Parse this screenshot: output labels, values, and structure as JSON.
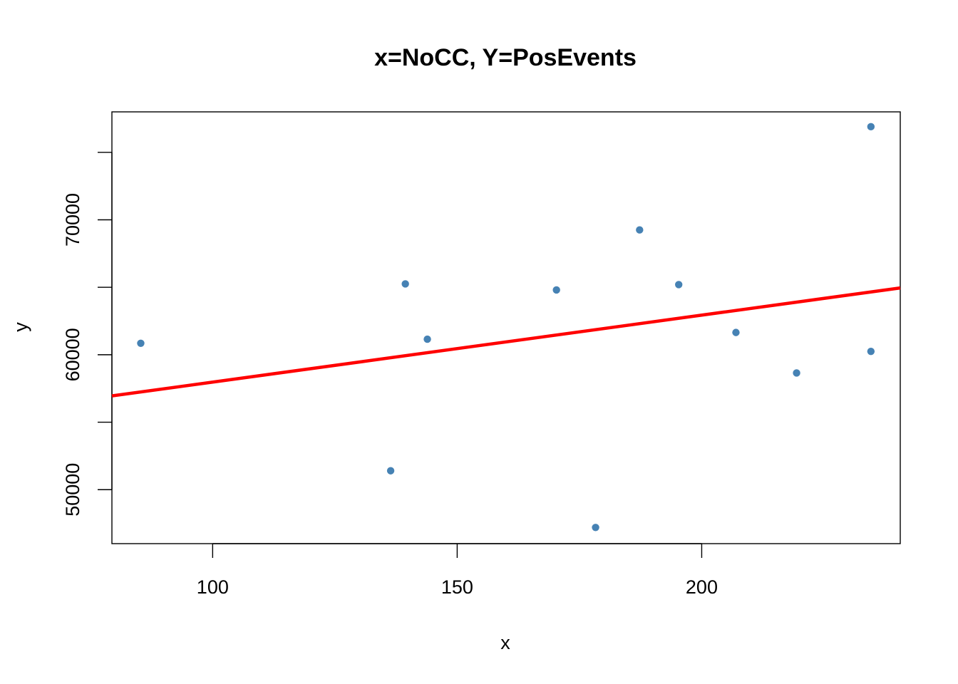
{
  "chart_data": {
    "type": "scatter",
    "title": "x=NoCC, Y=PosEvents",
    "xlabel": "x",
    "ylabel": "y",
    "xlim": [
      79.4,
      240.6
    ],
    "ylim": [
      46000,
      78000
    ],
    "x_ticks": [
      100,
      150,
      200
    ],
    "x_tick_labels": [
      "100",
      "150",
      "200"
    ],
    "y_ticks": [
      50000,
      55000,
      60000,
      65000,
      70000,
      75000
    ],
    "y_tick_labels": [
      "50000",
      "",
      "60000",
      "",
      "70000",
      ""
    ],
    "grid": false,
    "legend": "none",
    "points": [
      {
        "x": 85.3,
        "y": 60850
      },
      {
        "x": 136.4,
        "y": 51400
      },
      {
        "x": 139.4,
        "y": 65250
      },
      {
        "x": 143.9,
        "y": 61150
      },
      {
        "x": 170.3,
        "y": 64800
      },
      {
        "x": 178.3,
        "y": 47200
      },
      {
        "x": 187.3,
        "y": 69250
      },
      {
        "x": 195.3,
        "y": 65200
      },
      {
        "x": 207.0,
        "y": 61650
      },
      {
        "x": 219.4,
        "y": 58650
      },
      {
        "x": 234.6,
        "y": 60250
      },
      {
        "x": 234.6,
        "y": 76900
      }
    ],
    "regression_line": {
      "x": [
        79.4,
        240.6
      ],
      "y": [
        56950,
        64950
      ]
    },
    "colors": {
      "points": "#4682B4",
      "regression_line": "#FF0000"
    }
  }
}
